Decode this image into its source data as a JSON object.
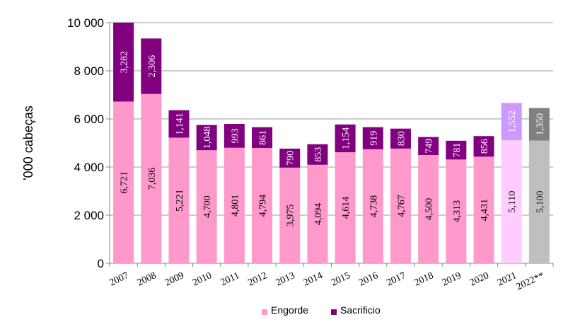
{
  "chart_data": {
    "type": "bar",
    "stacked": true,
    "title": "",
    "xlabel": "",
    "ylabel": "'000 cabeças",
    "ylim": [
      0,
      10000
    ],
    "yticks": [
      0,
      2000,
      4000,
      6000,
      8000,
      10000
    ],
    "ytick_labels": [
      "0",
      "2 000",
      "4 000",
      "6 000",
      "8 000",
      "10 000"
    ],
    "grid": true,
    "legend_position": "bottom",
    "categories": [
      "2007",
      "2008",
      "2009",
      "2010",
      "2011",
      "2012",
      "2013",
      "2014",
      "2015",
      "2016",
      "2017",
      "2018",
      "2019",
      "2020",
      "2021",
      "2022**"
    ],
    "series": [
      {
        "name": "Engorde",
        "color": "#FF99CC",
        "values": [
          6721,
          7036,
          5221,
          4700,
          4801,
          4794,
          3975,
          4094,
          4614,
          4738,
          4767,
          4500,
          4313,
          4431,
          5110,
          5100
        ],
        "labels": [
          "6,721",
          "7,036",
          "5,221",
          "4,700",
          "4,801",
          "4,794",
          "3,975",
          "4,094",
          "4,614",
          "4,738",
          "4,767",
          "4,500",
          "4,313",
          "4,431",
          "5,110",
          "5,100"
        ]
      },
      {
        "name": "Sacrificio",
        "color": "#800080",
        "values": [
          3282,
          2306,
          1141,
          1048,
          993,
          861,
          790,
          853,
          1154,
          919,
          830,
          749,
          781,
          856,
          1552,
          1350
        ],
        "labels": [
          "3,282",
          "2,306",
          "1,141",
          "1,048",
          "993",
          "861",
          "790",
          "853",
          "1,154",
          "919",
          "830",
          "749",
          "781",
          "856",
          "1,552",
          "1,350"
        ]
      }
    ],
    "point_colors": {
      "2021": {
        "Engorde": "#FFCCFF",
        "Sacrificio": "#CC99FF"
      },
      "2022**": {
        "Engorde": "#BFBFBF",
        "Sacrificio": "#808080"
      }
    }
  }
}
